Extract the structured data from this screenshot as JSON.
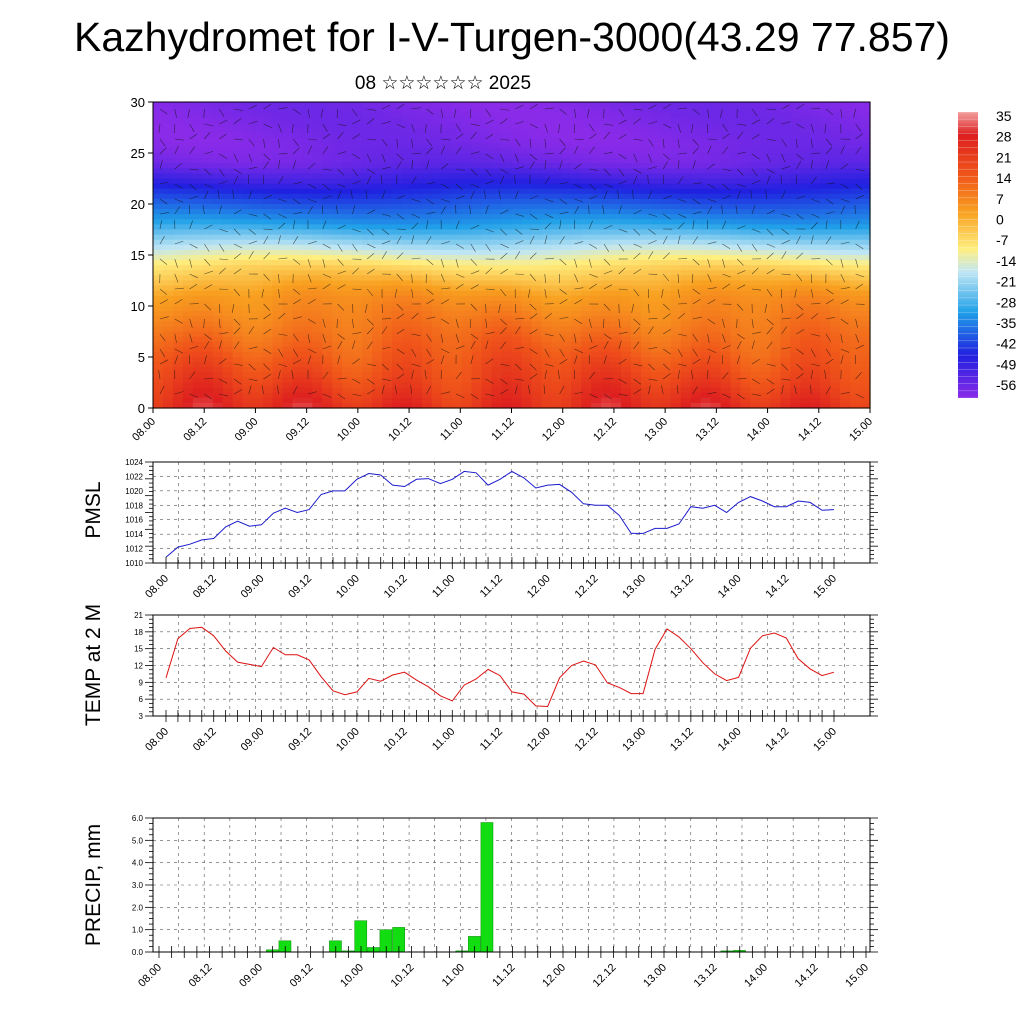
{
  "header": {
    "title": "Kazhydromet for I-V-Turgen-3000(43.29 77.857)",
    "subtitle": "08 ☆☆☆☆☆☆ 2025"
  },
  "colors": {
    "pmsl_line": "#1a1acc",
    "temp_line": "#dd1111",
    "precip_bar": "#11dd11"
  },
  "chart_data": [
    {
      "type": "heatmap",
      "title": "",
      "ylabel": "",
      "ylim": [
        0,
        30
      ],
      "yticks": [
        0,
        5,
        10,
        15,
        20,
        25,
        30
      ],
      "xtick_labels": [
        "08.00",
        "08.12",
        "09.00",
        "09.12",
        "10.00",
        "10.12",
        "11.00",
        "11.12",
        "12.00",
        "12.12",
        "13.00",
        "13.12",
        "14.00",
        "14.12",
        "15.00"
      ],
      "z_unit": "temperature",
      "colorbar_labels": [
        "35",
        "28",
        "21",
        "14",
        "7",
        "0",
        "-7",
        "-14",
        "-21",
        "-28",
        "-35",
        "-42",
        "-49",
        "-56"
      ],
      "colorbar_range": [
        -60,
        38
      ],
      "overlay": "wind vectors",
      "temperature_profile": {
        "levels": [
          0,
          3,
          5,
          8,
          11,
          14,
          16,
          18,
          20,
          22,
          24,
          26,
          28,
          30
        ],
        "values": [
          25,
          18,
          14,
          8,
          2,
          -8,
          -18,
          -30,
          -40,
          -50,
          -58,
          -60,
          -60,
          -60
        ]
      }
    },
    {
      "type": "line",
      "ylabel": "PMSL",
      "ylim": [
        1010,
        1024
      ],
      "yticks": [
        1010,
        1012,
        1014,
        1016,
        1018,
        1020,
        1022,
        1024
      ],
      "xtick_labels": [
        "08.00",
        "08.12",
        "09.00",
        "09.12",
        "10.00",
        "10.12",
        "11.00",
        "11.12",
        "12.00",
        "12.12",
        "13.00",
        "13.12",
        "14.00",
        "14.12",
        "15.00"
      ],
      "x_step_hours": 3,
      "values": [
        1010.8,
        1012.2,
        1012.6,
        1013.2,
        1013.4,
        1015.0,
        1015.8,
        1015.1,
        1015.3,
        1016.9,
        1017.6,
        1017.0,
        1017.4,
        1019.5,
        1020.0,
        1020.0,
        1021.6,
        1022.4,
        1022.2,
        1020.8,
        1020.6,
        1021.6,
        1021.7,
        1021.0,
        1021.6,
        1022.7,
        1022.5,
        1020.8,
        1021.6,
        1022.7,
        1021.8,
        1020.4,
        1020.8,
        1020.9,
        1019.8,
        1018.2,
        1018.0,
        1018.0,
        1016.6,
        1014.1,
        1014.1,
        1014.8,
        1014.8,
        1015.4,
        1017.8,
        1017.6,
        1018.0,
        1017.0,
        1018.4,
        1019.2,
        1018.6,
        1017.8,
        1017.8,
        1018.6,
        1018.4,
        1017.3,
        1017.4
      ]
    },
    {
      "type": "line",
      "ylabel": "TEMP at 2 M",
      "ylim": [
        3,
        21
      ],
      "yticks": [
        3,
        6,
        9,
        12,
        15,
        18,
        21
      ],
      "xtick_labels": [
        "08.00",
        "08.12",
        "09.00",
        "09.12",
        "10.00",
        "10.12",
        "11.00",
        "11.12",
        "12.00",
        "12.12",
        "13.00",
        "13.12",
        "14.00",
        "14.12",
        "15.00"
      ],
      "x_step_hours": 3,
      "values": [
        9.8,
        16.8,
        18.6,
        18.8,
        17.3,
        14.6,
        12.6,
        12.2,
        11.8,
        15.2,
        13.9,
        13.9,
        13.0,
        10.0,
        7.5,
        6.8,
        7.3,
        9.7,
        9.2,
        10.3,
        10.8,
        9.4,
        8.2,
        6.6,
        5.7,
        8.5,
        9.6,
        11.3,
        10.2,
        7.3,
        6.9,
        4.8,
        4.7,
        9.8,
        12.0,
        12.8,
        12.1,
        8.9,
        8.1,
        7.0,
        7.0,
        14.9,
        18.5,
        17.1,
        15.0,
        12.5,
        10.5,
        9.3,
        9.9,
        15.1,
        17.3,
        17.8,
        16.9,
        13.2,
        11.4,
        10.2,
        10.8
      ]
    },
    {
      "type": "bar",
      "ylabel": "PRECIP, mm",
      "ylim": [
        0,
        6
      ],
      "ytick_labels": [
        "0.0",
        "1.0",
        "2.0",
        "3.0",
        "4.0",
        "5.0",
        "6.0"
      ],
      "xtick_labels": [
        "08.00",
        "08.12",
        "09.00",
        "09.12",
        "10.00",
        "10.12",
        "11.00",
        "11.12",
        "12.00",
        "12.12",
        "13.00",
        "13.12",
        "14.00",
        "14.12",
        "15.00"
      ],
      "x_step_hours": 3,
      "values": [
        0,
        0,
        0,
        0,
        0,
        0,
        0,
        0,
        0,
        0.1,
        0.5,
        0,
        0,
        0,
        0.5,
        0.05,
        1.4,
        0.2,
        1.0,
        1.1,
        0,
        0,
        0,
        0,
        0.05,
        0.7,
        5.8,
        0,
        0,
        0,
        0,
        0,
        0,
        0,
        0,
        0,
        0,
        0,
        0,
        0,
        0,
        0,
        0,
        0,
        0,
        0.05,
        0.07,
        0,
        0,
        0,
        0,
        0,
        0,
        0,
        0,
        0,
        0
      ]
    }
  ]
}
